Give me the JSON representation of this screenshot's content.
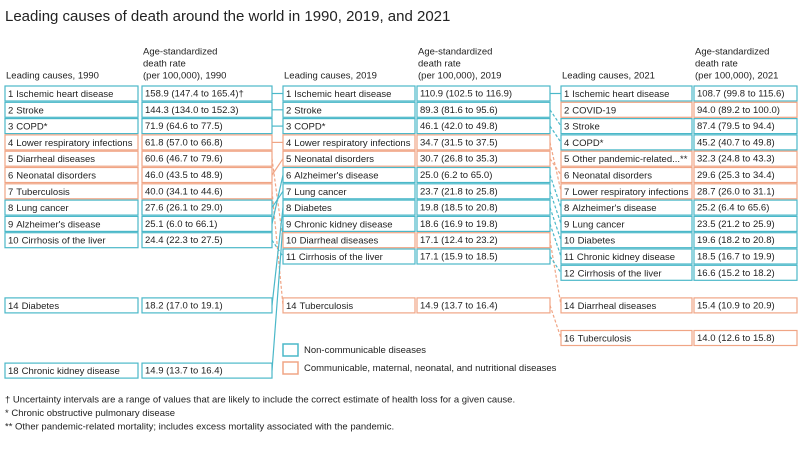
{
  "title": "Leading causes of death around the world in 1990, 2019, and 2021",
  "columns": [
    {
      "cause_header": "Leading causes, 1990",
      "rate_header": [
        "Age-standardized",
        "death rate",
        "(per 100,000), 1990"
      ],
      "rows": [
        {
          "rank": 1,
          "cause": "Ischemic heart disease",
          "rate": "158.9 (147.4 to 165.4)†",
          "color": "#4bb8c9"
        },
        {
          "rank": 2,
          "cause": "Stroke",
          "rate": "144.3 (134.0 to 152.3)",
          "color": "#4bb8c9"
        },
        {
          "rank": 3,
          "cause": "COPD*",
          "rate": "71.9 (64.6 to 77.5)",
          "color": "#4bb8c9"
        },
        {
          "rank": 4,
          "cause": "Lower respiratory infections",
          "rate": "61.8 (57.0 to 66.8)",
          "color": "#f0a585"
        },
        {
          "rank": 5,
          "cause": "Diarrheal diseases",
          "rate": "60.6 (46.7 to 79.6)",
          "color": "#f0a585"
        },
        {
          "rank": 6,
          "cause": "Neonatal disorders",
          "rate": "46.0 (43.5 to 48.9)",
          "color": "#f0a585"
        },
        {
          "rank": 7,
          "cause": "Tuberculosis",
          "rate": "40.0 (34.1 to 44.6)",
          "color": "#f0a585"
        },
        {
          "rank": 8,
          "cause": "Lung cancer",
          "rate": "27.6 (26.1 to 29.0)",
          "color": "#4bb8c9"
        },
        {
          "rank": 9,
          "cause": "Alzheimer's disease",
          "rate": "25.1 (6.0 to 66.1)",
          "color": "#4bb8c9"
        },
        {
          "rank": 10,
          "cause": "Cirrhosis of the liver",
          "rate": "24.4 (22.3 to 27.5)",
          "color": "#4bb8c9"
        },
        {
          "rank": 14,
          "cause": "Diabetes",
          "rate": "18.2 (17.0 to 19.1)",
          "color": "#4bb8c9"
        },
        {
          "rank": 18,
          "cause": "Chronic kidney disease",
          "rate": "14.9 (13.7 to 16.4)",
          "color": "#4bb8c9"
        }
      ]
    },
    {
      "cause_header": "Leading causes, 2019",
      "rate_header": [
        "Age-standardized",
        "death rate",
        "(per 100,000), 2019"
      ],
      "rows": [
        {
          "rank": 1,
          "cause": "Ischemic heart disease",
          "rate": "110.9 (102.5 to 116.9)",
          "color": "#4bb8c9"
        },
        {
          "rank": 2,
          "cause": "Stroke",
          "rate": "89.3 (81.6 to 95.6)",
          "color": "#4bb8c9"
        },
        {
          "rank": 3,
          "cause": "COPD*",
          "rate": "46.1 (42.0 to 49.8)",
          "color": "#4bb8c9"
        },
        {
          "rank": 4,
          "cause": "Lower respiratory infections",
          "rate": "34.7 (31.5 to 37.5)",
          "color": "#f0a585"
        },
        {
          "rank": 5,
          "cause": "Neonatal disorders",
          "rate": "30.7 (26.8 to 35.3)",
          "color": "#f0a585"
        },
        {
          "rank": 6,
          "cause": "Alzheimer's disease",
          "rate": "25.0 (6.2 to 65.0)",
          "color": "#4bb8c9"
        },
        {
          "rank": 7,
          "cause": "Lung cancer",
          "rate": "23.7 (21.8 to 25.8)",
          "color": "#4bb8c9"
        },
        {
          "rank": 8,
          "cause": "Diabetes",
          "rate": "19.8 (18.5 to 20.8)",
          "color": "#4bb8c9"
        },
        {
          "rank": 9,
          "cause": "Chronic kidney disease",
          "rate": "18.6 (16.9 to 19.8)",
          "color": "#4bb8c9"
        },
        {
          "rank": 10,
          "cause": "Diarrheal diseases",
          "rate": "17.1 (12.4 to 23.2)",
          "color": "#f0a585"
        },
        {
          "rank": 11,
          "cause": "Cirrhosis of the liver",
          "rate": "17.1 (15.9 to 18.5)",
          "color": "#4bb8c9"
        },
        {
          "rank": 14,
          "cause": "Tuberculosis",
          "rate": "14.9 (13.7 to 16.4)",
          "color": "#f0a585"
        }
      ]
    },
    {
      "cause_header": "Leading causes, 2021",
      "rate_header": [
        "Age-standardized",
        "death rate",
        "(per 100,000), 2021"
      ],
      "rows": [
        {
          "rank": 1,
          "cause": "Ischemic heart disease",
          "rate": "108.7 (99.8 to 115.6)",
          "color": "#4bb8c9"
        },
        {
          "rank": 2,
          "cause": "COVID-19",
          "rate": "94.0 (89.2 to 100.0)",
          "color": "#f0a585"
        },
        {
          "rank": 3,
          "cause": "Stroke",
          "rate": "87.4 (79.5 to 94.4)",
          "color": "#4bb8c9"
        },
        {
          "rank": 4,
          "cause": "COPD*",
          "rate": "45.2 (40.7 to 49.8)",
          "color": "#4bb8c9"
        },
        {
          "rank": 5,
          "cause": "Other pandemic-related...**",
          "rate": "32.3 (24.8 to 43.3)",
          "color": "#f0a585"
        },
        {
          "rank": 6,
          "cause": "Neonatal disorders",
          "rate": "29.6 (25.3 to 34.4)",
          "color": "#f0a585"
        },
        {
          "rank": 7,
          "cause": "Lower respiratory infections",
          "rate": "28.7 (26.0 to 31.1)",
          "color": "#f0a585"
        },
        {
          "rank": 8,
          "cause": "Alzheimer's disease",
          "rate": "25.2 (6.4 to 65.6)",
          "color": "#4bb8c9"
        },
        {
          "rank": 9,
          "cause": "Lung cancer",
          "rate": "23.5 (21.2 to 25.9)",
          "color": "#4bb8c9"
        },
        {
          "rank": 10,
          "cause": "Diabetes",
          "rate": "19.6 (18.2 to 20.8)",
          "color": "#4bb8c9"
        },
        {
          "rank": 11,
          "cause": "Chronic kidney disease",
          "rate": "18.5 (16.7 to 19.9)",
          "color": "#4bb8c9"
        },
        {
          "rank": 12,
          "cause": "Cirrhosis of the liver",
          "rate": "16.6 (15.2 to 18.2)",
          "color": "#4bb8c9"
        },
        {
          "rank": 14,
          "cause": "Diarrheal diseases",
          "rate": "15.4 (10.9 to 20.9)",
          "color": "#f0a585"
        },
        {
          "rank": 16,
          "cause": "Tuberculosis",
          "rate": "14.0 (12.6 to 15.8)",
          "color": "#f0a585"
        }
      ]
    }
  ],
  "legend": [
    {
      "label": "Non-communicable diseases",
      "color": "#4bb8c9"
    },
    {
      "label": "Communicable, maternal, neonatal, and nutritional diseases",
      "color": "#f0a585"
    }
  ],
  "footnotes": [
    "† Uncertainty intervals are a range of values that are likely to include the correct estimate of health loss for a given cause.",
    "* Chronic obstructive pulmonary disease",
    "** Other pandemic-related mortality; includes excess mortality associated with the pandemic."
  ]
}
